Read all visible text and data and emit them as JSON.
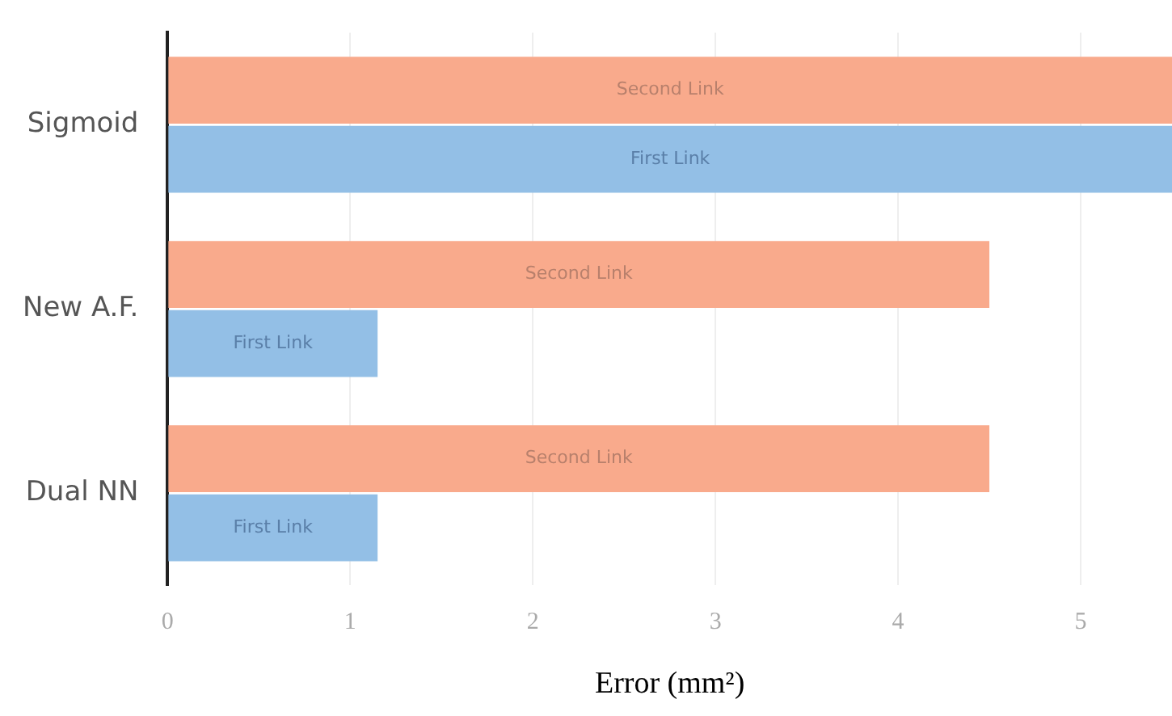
{
  "chart_data": {
    "type": "bar",
    "orientation": "horizontal",
    "xlabel": "Error (mm²)",
    "categories": [
      "Sigmoid",
      "New A.F.",
      "Dual NN"
    ],
    "series": [
      {
        "name": "Second Link",
        "color": "#f9aa8c",
        "values": [
          5.5,
          4.5,
          4.5
        ]
      },
      {
        "name": "First Link",
        "color": "#93bfe6",
        "values": [
          5.5,
          1.15,
          1.15
        ]
      }
    ],
    "xlim": [
      0,
      5.5
    ],
    "xticks": [
      0,
      1,
      2,
      3,
      4,
      5
    ],
    "grid": "x",
    "legend": false
  }
}
